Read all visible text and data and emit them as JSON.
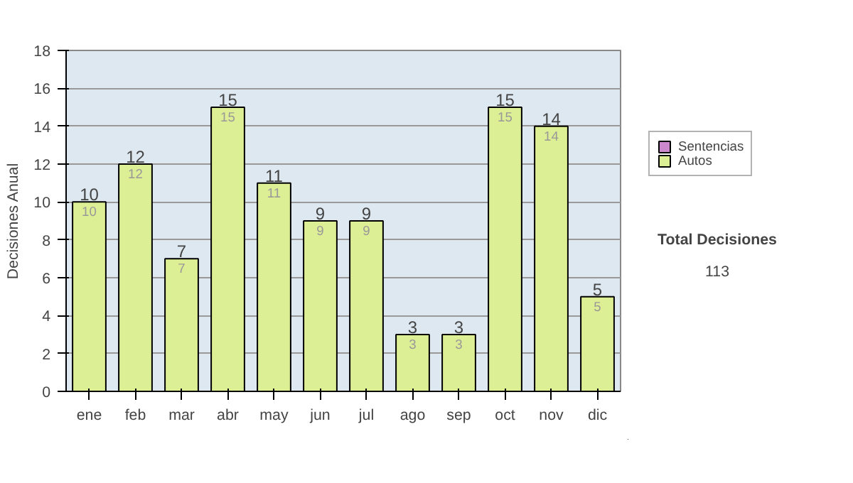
{
  "chart_data": {
    "type": "bar",
    "stacked": true,
    "ylabel": "Decisiones Anual",
    "categories": [
      "ene",
      "feb",
      "mar",
      "abr",
      "may",
      "jun",
      "jul",
      "ago",
      "sep",
      "oct",
      "nov",
      "dic"
    ],
    "series": [
      {
        "name": "Sentencias",
        "color": "#cc88cc",
        "values": [
          0,
          0,
          0,
          0,
          0,
          0,
          0,
          0,
          0,
          0,
          0,
          0
        ]
      },
      {
        "name": "Autos",
        "color": "#ddef94",
        "values": [
          10,
          12,
          7,
          15,
          11,
          9,
          9,
          3,
          3,
          15,
          14,
          5
        ],
        "value_labels": [
          "10",
          "12",
          "7",
          "15",
          "11",
          "9",
          "9",
          "3",
          "3",
          "15",
          "14",
          "5"
        ]
      }
    ],
    "totals": [
      "10",
      "12",
      "7",
      "15",
      "11",
      "9",
      "9",
      "3",
      "3",
      "15",
      "14",
      "5"
    ],
    "ylim": [
      0,
      18
    ],
    "yticks": [
      0,
      2,
      4,
      6,
      8,
      10,
      12,
      14,
      16,
      18
    ],
    "grid": "y",
    "legend": "right",
    "annotations": [
      "Total Decisiones",
      "113"
    ]
  }
}
